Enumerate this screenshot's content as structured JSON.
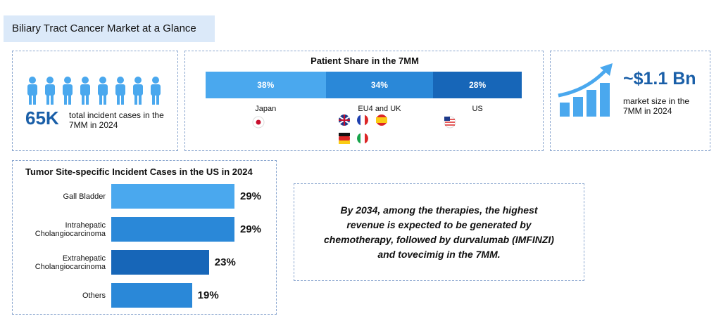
{
  "title": "Biliary Tract Cancer Market at a Glance",
  "incident": {
    "value_label": "65K",
    "text": "total incident cases in the 7MM in 2024"
  },
  "market": {
    "value_label": "~$1.1 Bn",
    "text": "market size in the 7MM in 2024"
  },
  "note": "By 2034, among the therapies, the highest revenue is expected to be generated by chemotherapy, followed by durvalumab (IMFINZI) and tovecimig in the 7MM.",
  "chart_data": [
    {
      "type": "stacked-bar",
      "title": "Patient Share in the 7MM",
      "categories": [
        "Japan",
        "EU4 and UK",
        "US"
      ],
      "values": [
        38,
        34,
        28
      ],
      "value_labels": [
        "38%",
        "34%",
        "28%"
      ],
      "colors": [
        "#4aa8ee",
        "#2a88d8",
        "#1766b8"
      ]
    },
    {
      "type": "hbar",
      "title": "Tumor Site-specific Incident Cases in the US in 2024",
      "categories": [
        "Gall Bladder",
        "Intrahepatic Cholangiocarcinoma",
        "Extrahepatic Cholangiocarcinoma",
        "Others"
      ],
      "values": [
        29,
        29,
        23,
        19
      ],
      "value_labels": [
        "29%",
        "29%",
        "23%",
        "19%"
      ],
      "colors": [
        "#4aa8ee",
        "#2a88d8",
        "#1766b8",
        "#2a88d8"
      ]
    }
  ]
}
